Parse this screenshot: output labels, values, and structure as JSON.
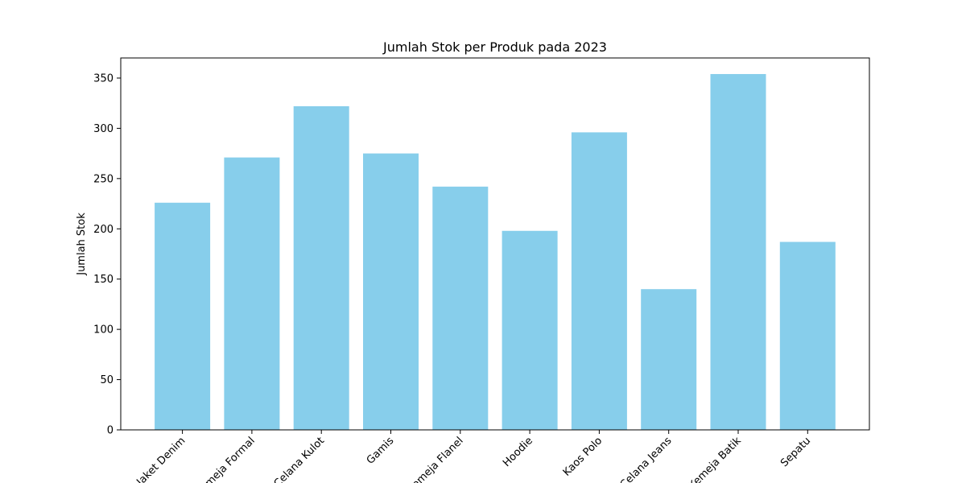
{
  "chart_data": {
    "type": "bar",
    "title": "Jumlah Stok per Produk pada 2023",
    "xlabel": "",
    "ylabel": "Jumlah Stok",
    "categories": [
      "Jaket Denim",
      "Kemeja Formal",
      "Celana Kulot",
      "Gamis",
      "Kemeja Flanel",
      "Hoodie",
      "Kaos Polo",
      "Celana Jeans",
      "Kemeja Batik",
      "Sepatu"
    ],
    "values": [
      226,
      271,
      322,
      275,
      242,
      198,
      296,
      140,
      354,
      187
    ],
    "ylim": [
      0,
      370
    ],
    "yticks": [
      0,
      50,
      100,
      150,
      200,
      250,
      300,
      350
    ],
    "bar_color": "#87CEEB",
    "grid": false,
    "legend": "none"
  }
}
